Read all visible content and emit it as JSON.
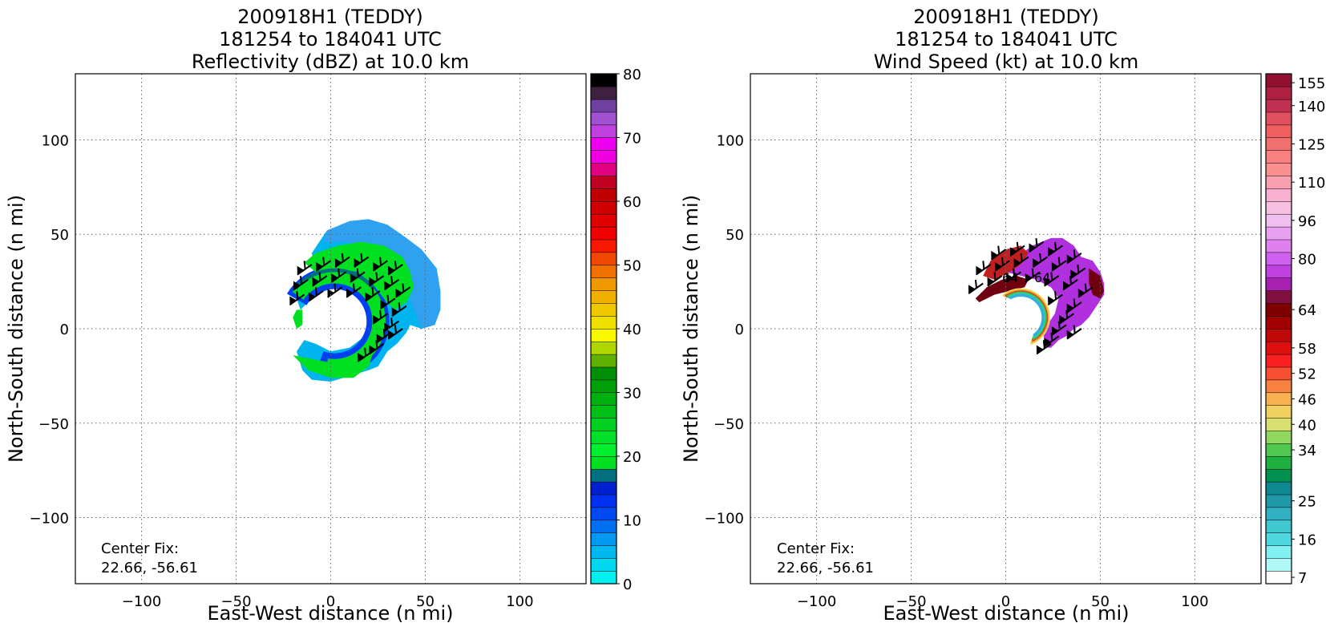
{
  "chart_data": [
    {
      "type": "heatmap",
      "title": [
        "200918H1 (TEDDY)",
        "181254 to 184041 UTC",
        "Reflectivity (dBZ) at 10.0 km"
      ],
      "xlabel": "East-West distance (n mi)",
      "ylabel": "North-South distance (n mi)",
      "xlim": [
        -135,
        135
      ],
      "ylim": [
        -135,
        135
      ],
      "xticks": [
        -100,
        -50,
        0,
        50,
        100
      ],
      "yticks": [
        -100,
        -50,
        0,
        50,
        100
      ],
      "xtick_labels": [
        "−100",
        "−50",
        "0",
        "50",
        "100"
      ],
      "ytick_labels": [
        "−100",
        "−50",
        "0",
        "50",
        "100"
      ],
      "grid": true,
      "annotation": [
        "Center Fix:",
        "22.66, -56.61"
      ],
      "colorbar": {
        "vmin": 0,
        "vmax": 80,
        "levels": 32,
        "tick_values": [
          0,
          10,
          20,
          30,
          40,
          50,
          60,
          70,
          80
        ],
        "tick_labels": [
          "0",
          "10",
          "20",
          "30",
          "40",
          "50",
          "60",
          "70",
          "80"
        ],
        "colors": [
          "#00f0f0",
          "#00d8f0",
          "#00b8f0",
          "#0098f0",
          "#0070f0",
          "#0048f0",
          "#0030f0",
          "#0020d0",
          "#007080",
          "#00e020",
          "#00f030",
          "#00e028",
          "#00d020",
          "#00c018",
          "#00b010",
          "#00a008",
          "#009008",
          "#60b000",
          "#b0d800",
          "#f8f800",
          "#f0e000",
          "#f0c800",
          "#f0b000",
          "#f09800",
          "#f07000",
          "#f04800",
          "#f81800",
          "#f00000",
          "#e00000",
          "#d00000",
          "#c00000",
          "#c00020",
          "#e00080",
          "#f000e0",
          "#f000f0",
          "#c040e0",
          "#a050d0",
          "#7040a0",
          "#402040",
          "#000000"
        ]
      },
      "field": {
        "colors": {
          "outer_cyan": "#00b4f0",
          "light_blue": "#30a0f0",
          "blue": "#0040f0",
          "green": "#00e020",
          "dark_green": "#00a030",
          "teal": "#007080"
        }
      }
    },
    {
      "type": "heatmap",
      "title": [
        "200918H1 (TEDDY)",
        "181254 to 184041 UTC",
        "Wind Speed (kt) at 10.0 km"
      ],
      "xlabel": "East-West distance (n mi)",
      "ylabel": "North-South distance (n mi)",
      "xlim": [
        -135,
        135
      ],
      "ylim": [
        -135,
        135
      ],
      "xticks": [
        -100,
        -50,
        0,
        50,
        100
      ],
      "yticks": [
        -100,
        -50,
        0,
        50,
        100
      ],
      "xtick_labels": [
        "−100",
        "−50",
        "0",
        "50",
        "100"
      ],
      "ytick_labels": [
        "−100",
        "−50",
        "0",
        "50",
        "100"
      ],
      "grid": true,
      "annotation": [
        "Center Fix:",
        "22.66, -56.61"
      ],
      "contour_labels": [
        "64",
        "64"
      ],
      "colorbar": {
        "vmin": 7,
        "vmax": 160,
        "levels": 32,
        "tick_values": [
          7,
          16,
          25,
          34,
          40,
          46,
          52,
          58,
          64,
          80,
          96,
          110,
          125,
          140,
          155
        ],
        "tick_labels": [
          "7",
          "16",
          "25",
          "34",
          "40",
          "46",
          "52",
          "58",
          "64",
          "80",
          "96",
          "110",
          "125",
          "140",
          "155"
        ],
        "colors": [
          "#ffffff",
          "#b0f8f8",
          "#80f0f0",
          "#50d8e0",
          "#40c8d0",
          "#30b0c0",
          "#2098a8",
          "#108890",
          "#009050",
          "#20b040",
          "#50c850",
          "#90d860",
          "#d8e070",
          "#f0d060",
          "#f8b050",
          "#f88040",
          "#f85030",
          "#f82020",
          "#e01010",
          "#c00808",
          "#a00000",
          "#800000",
          "#801040",
          "#a820b0",
          "#c040e0",
          "#d060f0",
          "#e080f0",
          "#e8a0f0",
          "#f0c0f0",
          "#f8c0e0",
          "#f8b0d0",
          "#f8a0b0",
          "#f89090",
          "#f88080",
          "#f07070",
          "#f06060",
          "#e05060",
          "#c03050",
          "#b02040",
          "#901030"
        ]
      },
      "field": {
        "colors": {
          "purple": "#b030e0",
          "dark_red": "#700010",
          "brick": "#c02020",
          "rainbow": [
            "#f0e060",
            "#f0b040",
            "#e04020",
            "#40c040",
            "#30d0a0",
            "#30b0e0"
          ]
        }
      }
    }
  ]
}
